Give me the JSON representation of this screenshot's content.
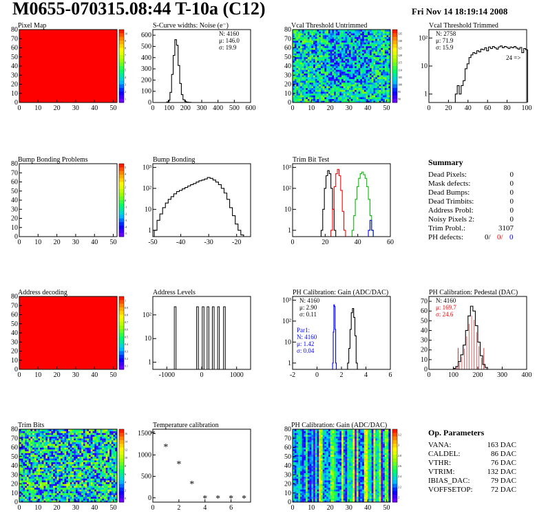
{
  "header": {
    "title": "M0655-070315.08:44 T-10a (C12)",
    "date": "Fri Nov 14 18:19:14 2008"
  },
  "colors": {
    "red": "#ff0000",
    "blue": "#0000ff",
    "green": "#00c000",
    "black": "#000000"
  },
  "summary": {
    "title": "Summary",
    "rows": [
      {
        "label": "Dead Pixels:",
        "value": "0"
      },
      {
        "label": "Mask defects:",
        "value": "0"
      },
      {
        "label": "Dead Bumps:",
        "value": "0"
      },
      {
        "label": "Dead Trimbits:",
        "value": "0"
      },
      {
        "label": "Address Probl:",
        "value": "0"
      },
      {
        "label": "Noisy Pixels 2:",
        "value": "0"
      },
      {
        "label": "Trim Probl.:",
        "value": "3107"
      }
    ],
    "ph_defects": {
      "label": "PH defects:",
      "black": "0/",
      "red": "0/",
      "blue": "0"
    }
  },
  "op_parameters": {
    "title": "Op. Parameters",
    "rows": [
      {
        "label": "VANA:",
        "value": "163 DAC"
      },
      {
        "label": "CALDEL:",
        "value": "86 DAC"
      },
      {
        "label": "VTHR:",
        "value": "76 DAC"
      },
      {
        "label": "VTRIM:",
        "value": "132 DAC"
      },
      {
        "label": "IBIAS_DAC:",
        "value": "79 DAC"
      },
      {
        "label": "VOFFSETOP:",
        "value": "72 DAC"
      }
    ]
  },
  "chart_data": [
    {
      "type": "heatmap",
      "title": "Pixel Map",
      "xticks": [
        "0",
        "10",
        "20",
        "30",
        "40",
        "50"
      ],
      "yticks": [
        "0",
        "10",
        "20",
        "30",
        "40",
        "50",
        "60",
        "70",
        "80"
      ],
      "xlim": [
        0,
        52
      ],
      "ylim": [
        0,
        80
      ],
      "fill": "uniform-red",
      "palette_ticks": [
        "10",
        "9",
        "8",
        "7",
        "6",
        "5",
        "4",
        "3",
        "2",
        "1"
      ]
    },
    {
      "type": "line",
      "title": "S-Curve widths: Noise (e⁻)",
      "xticks": [
        "0",
        "100",
        "200",
        "300",
        "400",
        "500",
        "600"
      ],
      "yticks": [
        "0",
        "100",
        "200",
        "300",
        "400",
        "500",
        "600"
      ],
      "xlim": [
        0,
        600
      ],
      "ylim": [
        0,
        650
      ],
      "stats": [
        "N: 4160",
        "μ: 146.0",
        "σ: 19.9"
      ],
      "x": [
        80,
        90,
        100,
        110,
        120,
        130,
        140,
        150,
        160,
        170,
        180,
        190,
        200,
        210,
        220,
        230,
        240
      ],
      "y": [
        0,
        5,
        20,
        90,
        250,
        420,
        560,
        510,
        330,
        170,
        70,
        25,
        10,
        4,
        2,
        1,
        0
      ]
    },
    {
      "type": "heatmap",
      "title": "Vcal Threshold Untrimmed",
      "xticks": [
        "0",
        "10",
        "20",
        "30",
        "40",
        "50"
      ],
      "yticks": [
        "0",
        "10",
        "20",
        "30",
        "40",
        "50",
        "60",
        "70",
        "80"
      ],
      "xlim": [
        0,
        52
      ],
      "ylim": [
        0,
        80
      ],
      "fill": "noisy-threshold-map",
      "palette_ticks": [
        "135",
        "130",
        "125",
        "120",
        "115",
        "110",
        "105",
        "100",
        "95",
        "90"
      ]
    },
    {
      "type": "line",
      "title": "Vcal Threshold Trimmed",
      "xticks": [
        "0",
        "20",
        "40",
        "60",
        "80",
        "100"
      ],
      "yticks": [
        "1",
        "10",
        "10²"
      ],
      "xlim": [
        0,
        100
      ],
      "ylim_log": [
        0.5,
        200
      ],
      "log_y": true,
      "stats": [
        "N: 2758",
        "μ: 71.9",
        "σ: 15.9"
      ],
      "annotation": "24 =>",
      "x": [
        28,
        30,
        32,
        34,
        36,
        38,
        40,
        42,
        44,
        46,
        48,
        50,
        52,
        54,
        56,
        58,
        60,
        62,
        64,
        66,
        68,
        70,
        72,
        74,
        76,
        78,
        80,
        82,
        84,
        86,
        88,
        90,
        92,
        94,
        96,
        98,
        100
      ],
      "y": [
        1,
        2,
        1,
        2,
        3,
        8,
        12,
        20,
        25,
        30,
        28,
        35,
        32,
        40,
        38,
        45,
        35,
        48,
        42,
        50,
        45,
        40,
        48,
        52,
        45,
        50,
        47,
        42,
        48,
        45,
        50,
        44,
        40,
        46,
        30,
        42,
        38
      ]
    },
    {
      "type": "heatmap",
      "title": "Bump Bonding Problems",
      "xticks": [
        "0",
        "10",
        "20",
        "30",
        "40",
        "50"
      ],
      "yticks": [
        "0",
        "10",
        "20",
        "30",
        "40",
        "50",
        "60",
        "70",
        "80"
      ],
      "xlim": [
        0,
        52
      ],
      "ylim": [
        0,
        80
      ],
      "fill": "empty",
      "palette_ticks": [
        "5",
        "4",
        "3",
        "2",
        "1",
        "0",
        "-1",
        "-2",
        "-3",
        "-4",
        "-5"
      ]
    },
    {
      "type": "line",
      "title": "Bump Bonding",
      "xticks": [
        "-50",
        "-40",
        "-30",
        "-20"
      ],
      "yticks": [
        "1",
        "10",
        "10²",
        "10³"
      ],
      "xlim": [
        -50,
        -15
      ],
      "ylim_log": [
        0.5,
        1500
      ],
      "log_y": true,
      "x": [
        -49,
        -48,
        -47,
        -46,
        -45,
        -44,
        -43,
        -42,
        -41,
        -40,
        -39,
        -38,
        -37,
        -36,
        -35,
        -34,
        -33,
        -32,
        -31,
        -30,
        -29,
        -28,
        -27,
        -26,
        -25,
        -24,
        -23,
        -22,
        -21,
        -20,
        -19,
        -18
      ],
      "y": [
        1,
        3,
        6,
        12,
        20,
        30,
        40,
        55,
        70,
        80,
        95,
        110,
        130,
        150,
        170,
        200,
        230,
        250,
        280,
        330,
        300,
        250,
        200,
        150,
        100,
        60,
        30,
        12,
        5,
        2,
        1,
        0.6
      ]
    },
    {
      "type": "line",
      "title": "Trim Bit Test",
      "xticks": [
        "0",
        "20",
        "40",
        "60"
      ],
      "yticks": [
        "1",
        "10",
        "10²",
        "10³"
      ],
      "xlim": [
        0,
        60
      ],
      "ylim_log": [
        0.5,
        1500
      ],
      "log_y": true,
      "series": [
        {
          "color": "black",
          "x": [
            18,
            19,
            20,
            21,
            22,
            23,
            24,
            25,
            26
          ],
          "y": [
            1,
            10,
            100,
            400,
            700,
            500,
            100,
            10,
            1
          ]
        },
        {
          "color": "red",
          "x": [
            24,
            25,
            26,
            27,
            28,
            29,
            30,
            31,
            32
          ],
          "y": [
            1,
            10,
            120,
            500,
            800,
            400,
            80,
            8,
            1
          ]
        },
        {
          "color": "green",
          "x": [
            37,
            38,
            39,
            40,
            41,
            42,
            43,
            44,
            45,
            46,
            47,
            48,
            49
          ],
          "y": [
            1,
            5,
            30,
            120,
            300,
            500,
            600,
            450,
            300,
            120,
            30,
            5,
            1
          ]
        },
        {
          "color": "blue",
          "x": [
            47,
            48,
            49
          ],
          "y": [
            1,
            3,
            1
          ]
        }
      ]
    },
    {
      "type": "heatmap",
      "title": "Address decoding",
      "xticks": [
        "0",
        "10",
        "20",
        "30",
        "40",
        "50"
      ],
      "yticks": [
        "0",
        "10",
        "20",
        "30",
        "40",
        "50",
        "60",
        "70",
        "80"
      ],
      "xlim": [
        0,
        52
      ],
      "ylim": [
        0,
        80
      ],
      "fill": "uniform-red",
      "palette_ticks": [
        "1",
        "0.9",
        "0.8",
        "0.7",
        "0.6",
        "0.5",
        "0.4",
        "0.3",
        "0.2",
        "0.1"
      ]
    },
    {
      "type": "line",
      "title": "Address Levels",
      "xticks": [
        "-1000",
        "0",
        "1000"
      ],
      "yticks": [
        "1",
        "10",
        "10²"
      ],
      "xlim": [
        -1400,
        1400
      ],
      "ylim_log": [
        0.5,
        600
      ],
      "log_y": true,
      "peaks": [
        -760,
        -120,
        40,
        180,
        330,
        480,
        650
      ],
      "peak_height": 220
    },
    {
      "type": "line",
      "title": "PH Calibration: Gain (ADC/DAC)",
      "xticks": [
        "-2",
        "0",
        "2",
        "4",
        "6"
      ],
      "yticks": [
        "1",
        "10",
        "10²",
        "10³"
      ],
      "xlim": [
        -2,
        6
      ],
      "ylim_log": [
        0.5,
        1500
      ],
      "log_y": true,
      "stats": [
        "N: 4160",
        "μ: 2.90",
        "σ: 0.11"
      ],
      "stats2": [
        "Par1:",
        "N: 4160",
        "μ: 1.42",
        "σ: 0.04"
      ],
      "series": [
        {
          "color": "black",
          "x": [
            2.55,
            2.65,
            2.75,
            2.85,
            2.95,
            3.05,
            3.15,
            3.25
          ],
          "y": [
            1,
            5,
            40,
            250,
            400,
            150,
            20,
            1
          ]
        },
        {
          "color": "blue",
          "x": [
            1.3,
            1.35,
            1.4,
            1.45,
            1.5,
            1.55
          ],
          "y": [
            1,
            30,
            600,
            500,
            40,
            1
          ]
        }
      ]
    },
    {
      "type": "line",
      "title": "PH Calibration: Pedestal (DAC)",
      "xticks": [
        "0",
        "100",
        "200",
        "300",
        "400"
      ],
      "yticks": [
        "0",
        "10",
        "20",
        "30",
        "40",
        "50",
        "60",
        "70"
      ],
      "xlim": [
        0,
        400
      ],
      "ylim": [
        0,
        75
      ],
      "stats": [
        "N: 4160",
        "μ: 169.7",
        "σ: 24.6"
      ],
      "x": [
        105,
        115,
        125,
        135,
        145,
        155,
        165,
        175,
        185,
        195,
        205,
        215,
        225,
        235,
        245
      ],
      "y": [
        1,
        3,
        8,
        15,
        25,
        40,
        55,
        65,
        60,
        45,
        28,
        14,
        5,
        2,
        0
      ]
    },
    {
      "type": "heatmap",
      "title": "Trim Bits",
      "xticks": [
        "0",
        "10",
        "20",
        "30",
        "40",
        "50"
      ],
      "yticks": [
        "0",
        "10",
        "20",
        "30",
        "40",
        "50",
        "60",
        "70",
        "80"
      ],
      "xlim": [
        0,
        52
      ],
      "ylim": [
        0,
        80
      ],
      "fill": "noisy-trimbits",
      "palette_ticks": [
        "16",
        "14",
        "12",
        "10",
        "8",
        "6",
        "4",
        "2",
        "0"
      ]
    },
    {
      "type": "scatter",
      "title": "Temperature calibration",
      "xticks": [
        "0",
        "2",
        "4",
        "6"
      ],
      "yticks": [
        "0",
        "500",
        "1000",
        "1500"
      ],
      "xlim": [
        0,
        7.5
      ],
      "ylim": [
        -100,
        1600
      ],
      "x": [
        0,
        1,
        2,
        3,
        4,
        5,
        6,
        7
      ],
      "y": [
        1500,
        1200,
        800,
        330,
        0,
        0,
        0,
        0
      ]
    },
    {
      "type": "heatmap",
      "title": "PH Calibration: Gain (ADC/DAC)",
      "xticks": [
        "0",
        "10",
        "20",
        "30",
        "40",
        "50"
      ],
      "yticks": [
        "0",
        "10",
        "20",
        "30",
        "40",
        "50",
        "60",
        "70",
        "80"
      ],
      "xlim": [
        0,
        52
      ],
      "ylim": [
        0,
        80
      ],
      "fill": "column-stripes",
      "palette_ticks": [
        "3.2",
        "3",
        "2.8",
        "2.6",
        "2.4",
        "2.2",
        "2"
      ]
    }
  ]
}
